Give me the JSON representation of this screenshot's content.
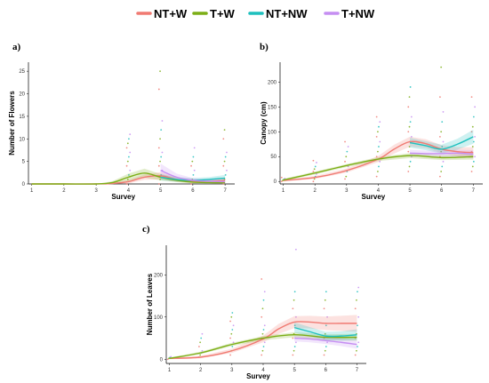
{
  "colors": {
    "NT+W": "#F07A72",
    "T+W": "#7CAE16",
    "NT+NW": "#1EC0BE",
    "T+NW": "#C58EF2"
  },
  "legend": [
    "NT+W",
    "T+W",
    "NT+NW",
    "T+NW"
  ],
  "chart_data": [
    {
      "type": "line",
      "panel": "a)",
      "xlabel": "Survey",
      "ylabel": "Number of Flowers",
      "x": [
        1,
        2,
        3,
        4,
        5,
        6,
        7
      ],
      "xlim": [
        0.9,
        7.3
      ],
      "ylim": [
        0,
        27
      ],
      "yticks": [
        0,
        5,
        10,
        15,
        20,
        25
      ],
      "series": [
        {
          "name": "NT+W",
          "x": [
            1,
            2,
            3,
            3.5,
            4,
            4.5,
            5,
            5.5,
            6,
            6.5,
            7
          ],
          "y": [
            0,
            0,
            0,
            0.1,
            0.5,
            1.5,
            1.8,
            1.0,
            0.6,
            0.6,
            0.8
          ],
          "ci": [
            0,
            0,
            0,
            0.2,
            0.4,
            0.6,
            0.8,
            0.5,
            0.4,
            0.4,
            0.5
          ]
        },
        {
          "name": "T+W",
          "x": [
            1,
            2,
            3,
            3.5,
            4,
            4.5,
            5,
            5.5,
            6,
            6.5,
            7
          ],
          "y": [
            0,
            0,
            0,
            0.3,
            1.5,
            2.4,
            1.5,
            0.8,
            0.4,
            0.3,
            0.3
          ],
          "ci": [
            0,
            0,
            0,
            0.3,
            0.8,
            1.0,
            0.7,
            0.4,
            0.3,
            0.3,
            0.3
          ]
        },
        {
          "name": "NT+NW",
          "x": [
            5,
            5.5,
            6,
            6.5,
            7
          ],
          "y": [
            1.5,
            1.0,
            0.8,
            1.0,
            1.3
          ],
          "ci": [
            0.7,
            0.5,
            0.5,
            0.5,
            0.7
          ]
        },
        {
          "name": "T+NW",
          "x": [
            5,
            5.5,
            6,
            6.5,
            7
          ],
          "y": [
            3.0,
            1.5,
            0.8,
            0.6,
            0.5
          ],
          "ci": [
            1.5,
            0.8,
            0.5,
            0.4,
            0.4
          ]
        }
      ],
      "points": {
        "4": [
          0,
          1,
          2,
          3,
          4,
          5,
          6,
          7,
          8,
          9,
          10,
          11
        ],
        "5": [
          0,
          1,
          2,
          3,
          4,
          5,
          6,
          7,
          8,
          10,
          12,
          14,
          21,
          25
        ],
        "6": [
          0,
          1,
          2,
          3,
          4,
          5,
          6,
          8
        ],
        "7": [
          0,
          1,
          2,
          3,
          4,
          5,
          6,
          7,
          10,
          12
        ]
      }
    },
    {
      "type": "line",
      "panel": "b)",
      "xlabel": "Survey",
      "ylabel": "Canopy (cm)",
      "x": [
        1,
        2,
        3,
        4,
        5,
        6,
        7
      ],
      "xlim": [
        0.9,
        7.3
      ],
      "ylim": [
        -5,
        240
      ],
      "yticks": [
        0,
        50,
        100,
        150,
        200
      ],
      "series": [
        {
          "name": "NT+W",
          "x": [
            1,
            2,
            3,
            4,
            4.5,
            5,
            5.5,
            6,
            6.5,
            7
          ],
          "y": [
            2,
            8,
            22,
            45,
            65,
            80,
            76,
            65,
            60,
            58
          ],
          "ci": [
            2,
            3,
            4,
            6,
            9,
            10,
            9,
            8,
            9,
            11
          ]
        },
        {
          "name": "T+W",
          "x": [
            1,
            2,
            3,
            4,
            5,
            6,
            7
          ],
          "y": [
            3,
            17,
            32,
            45,
            52,
            48,
            50
          ],
          "ci": [
            2,
            3,
            3,
            4,
            5,
            5,
            6
          ]
        },
        {
          "name": "NT+NW",
          "x": [
            5,
            5.5,
            6,
            6.5,
            7
          ],
          "y": [
            78,
            72,
            65,
            75,
            90
          ],
          "ci": [
            10,
            9,
            9,
            11,
            14
          ]
        },
        {
          "name": "T+NW",
          "x": [
            5,
            5.5,
            6,
            6.5,
            7
          ],
          "y": [
            57,
            56,
            56,
            57,
            55
          ],
          "ci": [
            7,
            6,
            6,
            7,
            8
          ]
        }
      ],
      "points": {
        "1": [
          0,
          2,
          4,
          6,
          8
        ],
        "2": [
          0,
          5,
          10,
          15,
          20,
          25,
          30,
          38,
          42
        ],
        "3": [
          5,
          10,
          20,
          30,
          40,
          50,
          60,
          70,
          80
        ],
        "4": [
          10,
          20,
          30,
          40,
          50,
          60,
          70,
          80,
          90,
          100,
          110,
          120,
          130
        ],
        "5": [
          20,
          30,
          40,
          50,
          60,
          70,
          80,
          90,
          100,
          110,
          120,
          130,
          150,
          170,
          190
        ],
        "6": [
          10,
          20,
          30,
          40,
          50,
          60,
          70,
          80,
          90,
          100,
          120,
          140,
          170,
          230
        ],
        "7": [
          20,
          30,
          40,
          50,
          60,
          70,
          80,
          90,
          100,
          110,
          130,
          150,
          170
        ]
      }
    },
    {
      "type": "line",
      "panel": "c)",
      "xlabel": "Survey",
      "ylabel": "Number of Leaves",
      "x": [
        1,
        2,
        3,
        4,
        5,
        6,
        7
      ],
      "xlim": [
        0.9,
        7.3
      ],
      "ylim": [
        -10,
        270
      ],
      "yticks": [
        0,
        100,
        200
      ],
      "series": [
        {
          "name": "NT+W",
          "x": [
            1,
            2,
            3,
            4,
            4.5,
            5,
            5.5,
            6,
            6.5,
            7
          ],
          "y": [
            2,
            5,
            20,
            48,
            72,
            88,
            88,
            85,
            85,
            85
          ],
          "ci": [
            2,
            3,
            5,
            8,
            12,
            14,
            15,
            16,
            18,
            20
          ]
        },
        {
          "name": "T+W",
          "x": [
            1,
            2,
            3,
            4,
            5,
            6,
            7
          ],
          "y": [
            2,
            15,
            35,
            50,
            58,
            52,
            52
          ],
          "ci": [
            2,
            3,
            4,
            5,
            6,
            7,
            8
          ]
        },
        {
          "name": "NT+NW",
          "x": [
            5,
            5.5,
            6,
            6.5,
            7
          ],
          "y": [
            75,
            65,
            55,
            55,
            58
          ],
          "ci": [
            12,
            11,
            10,
            11,
            13
          ]
        },
        {
          "name": "T+NW",
          "x": [
            5,
            5.5,
            6,
            6.5,
            7
          ],
          "y": [
            50,
            48,
            44,
            40,
            35
          ],
          "ci": [
            8,
            8,
            8,
            9,
            10
          ]
        }
      ],
      "points": {
        "1": [
          0,
          2,
          4,
          6
        ],
        "2": [
          5,
          10,
          15,
          20,
          30,
          40,
          50,
          60
        ],
        "3": [
          10,
          20,
          30,
          40,
          50,
          60,
          70,
          80,
          90,
          100,
          110
        ],
        "4": [
          10,
          20,
          30,
          40,
          50,
          60,
          70,
          80,
          100,
          120,
          140,
          160,
          190
        ],
        "5": [
          10,
          20,
          30,
          40,
          50,
          60,
          80,
          100,
          120,
          140,
          160,
          260
        ],
        "6": [
          10,
          20,
          30,
          40,
          50,
          60,
          80,
          100,
          120,
          140,
          160
        ],
        "7": [
          10,
          20,
          30,
          40,
          50,
          60,
          80,
          100,
          120,
          140,
          160,
          170
        ]
      }
    }
  ]
}
